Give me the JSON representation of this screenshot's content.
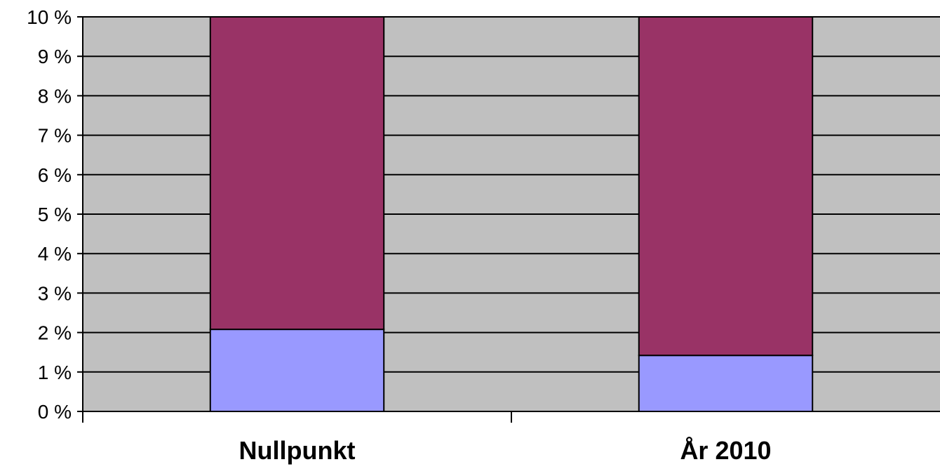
{
  "chart_data": {
    "type": "bar",
    "stacked": true,
    "categories": [
      "Nullpunkt",
      "År 2010"
    ],
    "series": [
      {
        "values": [
          2.08,
          1.42
        ],
        "color": "#9999ff"
      },
      {
        "values": [
          7.92,
          8.58
        ],
        "color": "#993366"
      }
    ],
    "ylim": [
      0,
      10
    ],
    "y_ticks": [
      0,
      1,
      2,
      3,
      4,
      5,
      6,
      7,
      8,
      9,
      10
    ],
    "y_tick_labels": [
      "0 %",
      "1 %",
      "2 %",
      "3 %",
      "4 %",
      "5 %",
      "6 %",
      "7 %",
      "8 %",
      "9 %",
      "10 %"
    ],
    "grid": true,
    "plot_background": "#c0c0c0"
  }
}
